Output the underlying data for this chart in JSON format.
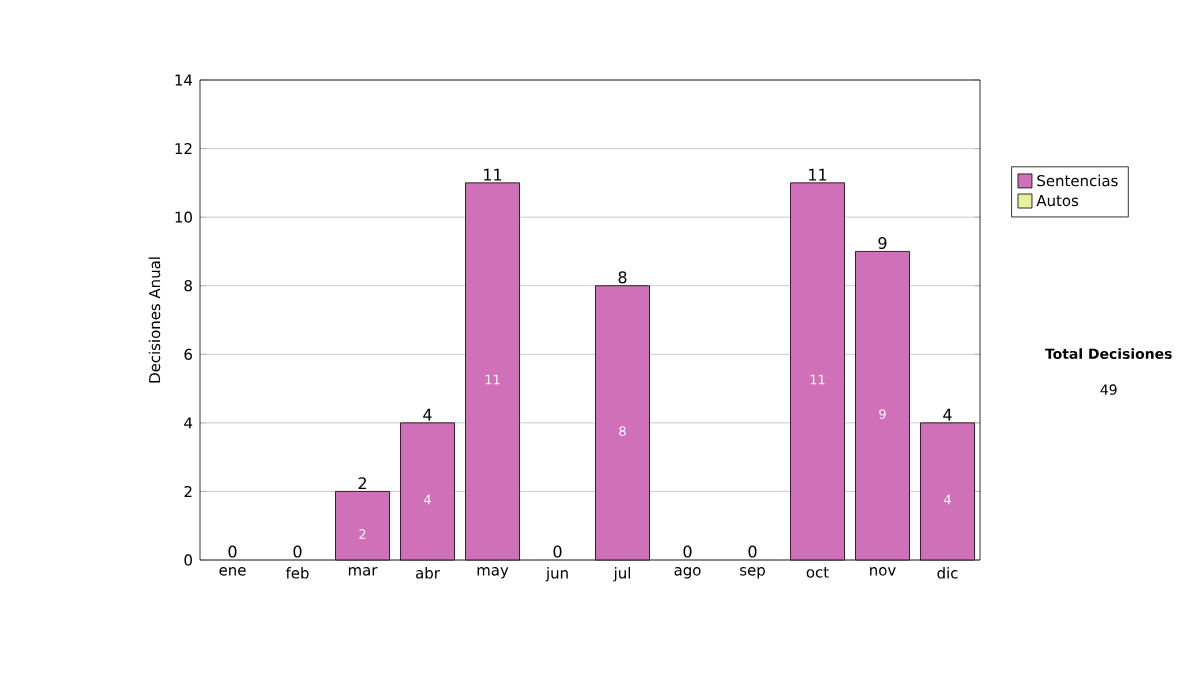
{
  "chart_data": {
    "type": "bar",
    "ylabel": "Decisiones Anual",
    "categories": [
      "ene",
      "feb",
      "mar",
      "abr",
      "may",
      "jun",
      "jul",
      "ago",
      "sep",
      "oct",
      "nov",
      "dic"
    ],
    "series": [
      {
        "name": "Sentencias",
        "color": "#d070b8",
        "values": [
          0,
          0,
          2,
          4,
          11,
          0,
          8,
          0,
          0,
          11,
          9,
          4
        ],
        "value_labels": [
          null,
          null,
          "2",
          "4",
          "11",
          null,
          "8",
          null,
          null,
          "11",
          "9",
          "4"
        ]
      },
      {
        "name": "Autos",
        "color": "#e8f0a0",
        "values": [
          0,
          0,
          0,
          0,
          0,
          0,
          0,
          0,
          0,
          0,
          0,
          0
        ]
      }
    ],
    "stacked": true,
    "totals": [
      "0",
      "0",
      "2",
      "4",
      "11",
      "0",
      "8",
      "0",
      "0",
      "11",
      "9",
      "4"
    ],
    "ylim": [
      0,
      14
    ],
    "yticks": [
      0,
      2,
      4,
      6,
      8,
      10,
      12,
      14
    ],
    "grid": "y",
    "legend": "right",
    "annotations": [
      "Total Decisiones",
      "49"
    ]
  }
}
